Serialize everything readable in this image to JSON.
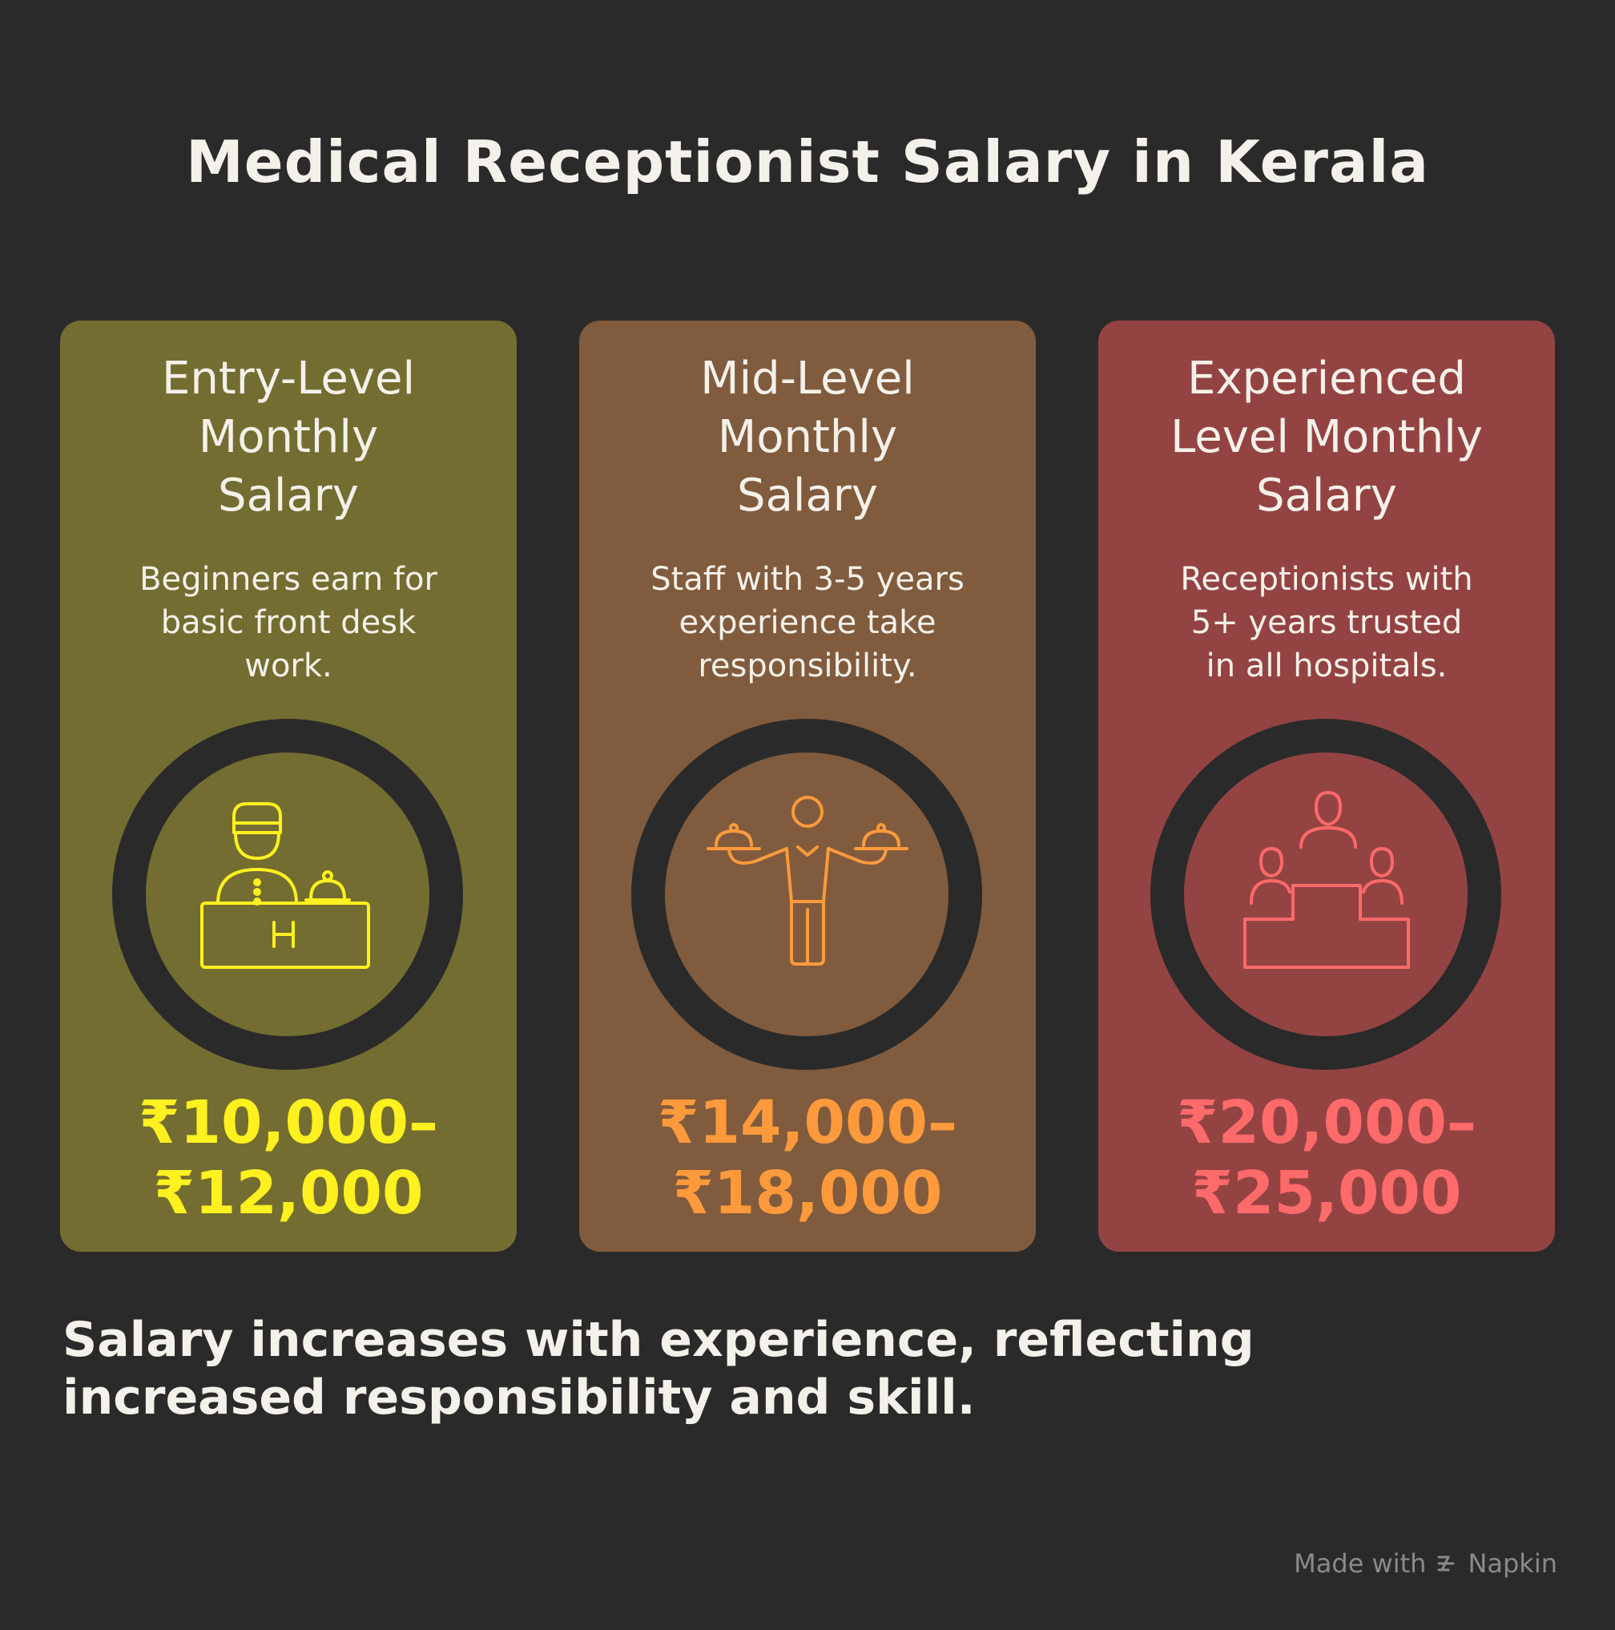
{
  "title": "Medical Receptionist Salary in Kerala",
  "cards": [
    {
      "title_lines": [
        "Entry-Level",
        "Monthly",
        "Salary"
      ],
      "desc_lines": [
        "Beginners earn for",
        "basic front desk",
        "work."
      ],
      "amount_lines": [
        "₹10,000–",
        "₹12,000"
      ],
      "icon": "hotel-receptionist-desk-icon",
      "color": "#fff01f"
    },
    {
      "title_lines": [
        "Mid-Level",
        "Monthly",
        "Salary"
      ],
      "desc_lines": [
        "Staff with 3-5 years",
        "experience take",
        "responsibility."
      ],
      "amount_lines": [
        "₹14,000–",
        "₹18,000"
      ],
      "icon": "waiter-serving-trays-icon",
      "color": "#ff9a3c"
    },
    {
      "title_lines": [
        "Experienced",
        "Level Monthly",
        "Salary"
      ],
      "desc_lines": [
        "Receptionists with",
        "5+ years trusted",
        "in all hospitals."
      ],
      "amount_lines": [
        "₹20,000–",
        "₹25,000"
      ],
      "icon": "podium-people-icon",
      "color": "#ff6a6a"
    }
  ],
  "footer_lines": [
    "Salary increases with experience, reflecting",
    "increased responsibility and skill."
  ],
  "brand": {
    "prefix": "Made with",
    "name": "Napkin",
    "icon": "napkin-logo-icon"
  }
}
